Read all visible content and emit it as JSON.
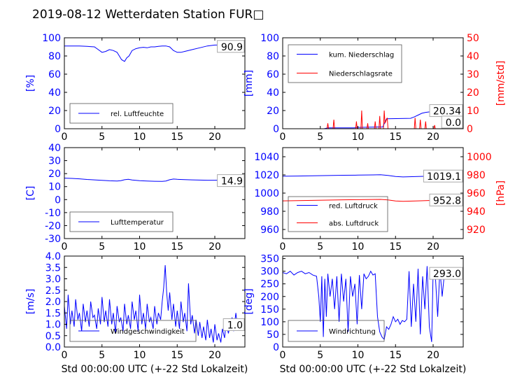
{
  "title": "2019-08-12 Wetterdaten Station FUR□",
  "colors": {
    "left": "#0000ff",
    "right": "#ff0000",
    "axis": "#000000",
    "legend_edge": "#555555",
    "box_edge": "#aaaaaa"
  },
  "chart_data": [
    {
      "id": "humidity",
      "type": "line",
      "ylabel": "[%]",
      "xlabel": "",
      "xlim": [
        0,
        24
      ],
      "xticks": [
        0,
        5,
        10,
        15,
        20
      ],
      "ylim": [
        0,
        100
      ],
      "yticks": [
        0,
        20,
        40,
        60,
        80,
        100
      ],
      "legend_position": "lower-left",
      "series": [
        {
          "name": "rel. Luftfeuchte",
          "axis": "left",
          "color": "#0000ff",
          "x": [
            0,
            1,
            2,
            3,
            4,
            4.5,
            5,
            5.5,
            6,
            6.5,
            7,
            7.3,
            7.6,
            8,
            8.3,
            8.6,
            9,
            9.5,
            10,
            10.5,
            11,
            11.5,
            12,
            12.5,
            13,
            13.5,
            14,
            14.5,
            15,
            15.5,
            16,
            17,
            18,
            19,
            20,
            21,
            22,
            23,
            24
          ],
          "y": [
            91,
            91,
            91,
            90.5,
            90,
            87,
            84,
            85,
            87,
            86,
            84,
            80,
            76,
            74,
            78,
            80,
            86,
            88,
            89,
            89.5,
            89,
            90,
            90,
            90.5,
            91,
            91,
            90,
            86,
            84,
            84,
            85,
            87,
            89,
            91,
            92,
            92,
            91.5,
            91,
            91
          ]
        }
      ],
      "value_labels": [
        {
          "text": "90.9",
          "axis": "left",
          "value": 90.9
        }
      ]
    },
    {
      "id": "precip",
      "type": "line",
      "ylabel": "[mm]",
      "ylabel_right": "[mm/std]",
      "xlabel": "",
      "xlim": [
        0,
        24
      ],
      "xticks": [
        0,
        5,
        10,
        15,
        20
      ],
      "ylim": [
        0,
        100
      ],
      "yticks": [
        0,
        20,
        40,
        60,
        80,
        100
      ],
      "ylim_right": [
        0,
        50
      ],
      "yticks_right": [
        0,
        10,
        20,
        30,
        40,
        50
      ],
      "legend_position": "upper-left",
      "series": [
        {
          "name": "kum. Niederschlag",
          "axis": "left",
          "color": "#0000ff",
          "x": [
            0,
            5.5,
            6,
            9.5,
            10,
            13.3,
            13.8,
            17,
            17.5,
            18,
            18.5,
            19,
            20,
            21,
            22,
            23,
            24
          ],
          "y": [
            0,
            0,
            1,
            1,
            1.5,
            2,
            11,
            11.5,
            13,
            15,
            17,
            18,
            19,
            19.5,
            20,
            20.2,
            20.34
          ]
        },
        {
          "name": "Niederschlagsrate",
          "axis": "right",
          "color": "#ff0000",
          "x": [
            0,
            5.9,
            6.0,
            6.1,
            6.7,
            6.8,
            6.9,
            9.7,
            9.8,
            9.9,
            10.4,
            10.5,
            10.6,
            11.2,
            11.3,
            11.4,
            12.2,
            12.3,
            12.4,
            12.8,
            12.9,
            13.0,
            13.4,
            13.5,
            13.6,
            13.9,
            14.0,
            17.5,
            17.6,
            17.7,
            18.2,
            18.3,
            18.4,
            18.9,
            19.0,
            19.1,
            20.1,
            20.2,
            20.3,
            24
          ],
          "y": [
            0,
            0,
            3,
            0,
            0,
            5,
            0,
            0,
            4,
            0,
            0,
            10,
            0,
            0,
            3,
            0,
            0,
            4,
            0,
            0,
            7,
            0,
            0,
            10,
            3,
            6,
            0,
            0,
            6,
            0,
            0,
            5,
            0,
            0,
            4,
            0,
            0,
            2,
            0,
            0
          ]
        }
      ],
      "value_labels": [
        {
          "text": "20.34",
          "axis": "left",
          "value": 20.34
        },
        {
          "text": "0.0",
          "axis": "right",
          "value": 0
        }
      ]
    },
    {
      "id": "temperature",
      "type": "line",
      "ylabel": "[C]",
      "xlabel": "",
      "xlim": [
        0,
        24
      ],
      "xticks": [
        0,
        5,
        10,
        15,
        20
      ],
      "ylim": [
        -30,
        40
      ],
      "yticks": [
        -30,
        -20,
        -10,
        0,
        10,
        20,
        30,
        40
      ],
      "legend_position": "lower-left",
      "series": [
        {
          "name": "Lufttemperatur",
          "axis": "left",
          "color": "#0000ff",
          "x": [
            0,
            1,
            2,
            3,
            4,
            5,
            6,
            7,
            7.5,
            8,
            8.5,
            9,
            10,
            11,
            12,
            13,
            13.5,
            14,
            14.5,
            15,
            16,
            17,
            18,
            19,
            20,
            21,
            22,
            23,
            24
          ],
          "y": [
            16.5,
            16.3,
            16,
            15.5,
            15.2,
            14.8,
            14.5,
            14.3,
            14.6,
            15.3,
            15.6,
            15.1,
            14.6,
            14.3,
            14.1,
            14,
            14.3,
            15.3,
            15.8,
            15.6,
            15.4,
            15.2,
            15,
            14.9,
            14.9,
            15,
            14.9,
            14.9,
            14.9
          ]
        }
      ],
      "value_labels": [
        {
          "text": "14.9",
          "axis": "left",
          "value": 14.9
        }
      ]
    },
    {
      "id": "pressure",
      "type": "line",
      "ylabel": "",
      "ylabel_right": "[hPa]",
      "xlabel": "",
      "xlim": [
        0,
        24
      ],
      "xticks": [
        0,
        5,
        10,
        15,
        20
      ],
      "ylim": [
        950,
        1050
      ],
      "yticks": [
        960,
        980,
        1000,
        1020,
        1040
      ],
      "ylim_right": [
        910,
        1010
      ],
      "yticks_right": [
        920,
        940,
        960,
        980,
        1000
      ],
      "legend_position": "lower-left",
      "series": [
        {
          "name": "red. Luftdruck",
          "axis": "left",
          "color": "#0000ff",
          "x": [
            0,
            2,
            4,
            6,
            8,
            10,
            12,
            13,
            14,
            15,
            16,
            18,
            20,
            22,
            24
          ],
          "y": [
            1018.5,
            1018.8,
            1019,
            1019.3,
            1019.6,
            1019.8,
            1020,
            1020.2,
            1019.5,
            1018.3,
            1017.8,
            1018.2,
            1018.8,
            1019.1,
            1019.1
          ]
        },
        {
          "name": "abs. Luftdruck",
          "axis": "right",
          "color": "#ff0000",
          "x": [
            0,
            2,
            4,
            6,
            8,
            10,
            12,
            13,
            14,
            15,
            16,
            18,
            20,
            22,
            24
          ],
          "y": [
            951.5,
            951.8,
            952,
            952.3,
            952.6,
            952.8,
            953,
            953.1,
            952.5,
            951.3,
            951,
            951.5,
            952,
            952.6,
            952.8
          ]
        }
      ],
      "value_labels": [
        {
          "text": "1019.1",
          "axis": "left",
          "value": 1019.1
        },
        {
          "text": "952.8",
          "axis": "right",
          "value": 952.8
        }
      ]
    },
    {
      "id": "windspeed",
      "type": "line",
      "ylabel": "[m/s]",
      "xlabel": "Std 00:00:00 UTC (+-22 Std Lokalzeit)",
      "xlim": [
        0,
        24
      ],
      "xticks": [
        0,
        5,
        10,
        15,
        20
      ],
      "ylim": [
        0,
        4
      ],
      "yticks": [
        0,
        0.5,
        1,
        1.5,
        2,
        2.5,
        3,
        3.5,
        4
      ],
      "yticklabels": [
        "0.0",
        "0.5",
        "1.0",
        "1.5",
        "2.0",
        "2.5",
        "3.0",
        "3.5",
        "4.0"
      ],
      "legend_position": "lower-left",
      "series": [
        {
          "name": "Windgeschwindigkeit",
          "axis": "left",
          "color": "#0000ff",
          "x": [
            0,
            0.3,
            0.5,
            0.8,
            1,
            1.3,
            1.5,
            1.8,
            2,
            2.3,
            2.5,
            2.8,
            3,
            3.3,
            3.5,
            3.8,
            4,
            4.3,
            4.5,
            4.8,
            5,
            5.3,
            5.5,
            5.8,
            6,
            6.3,
            6.5,
            6.8,
            7,
            7.3,
            7.5,
            7.8,
            8,
            8.3,
            8.5,
            8.8,
            9,
            9.3,
            9.5,
            9.8,
            10,
            10.3,
            10.5,
            10.8,
            11,
            11.3,
            11.5,
            11.8,
            12,
            12.3,
            12.5,
            12.8,
            13,
            13.2,
            13.4,
            13.6,
            13.8,
            14,
            14.3,
            14.5,
            14.8,
            15,
            15.3,
            15.5,
            15.8,
            16,
            16.3,
            16.5,
            16.8,
            17,
            17.3,
            17.5,
            17.8,
            18,
            18.3,
            18.5,
            18.8,
            19,
            19.3,
            19.5,
            19.8,
            20,
            20.3,
            20.5,
            20.8,
            21,
            21.3,
            21.5,
            21.8,
            22,
            22.3,
            22.5,
            22.8,
            23,
            23.3,
            23.5,
            23.8,
            24
          ],
          "y": [
            1.8,
            0.8,
            2.3,
            1.0,
            1.6,
            0.9,
            2.1,
            1.2,
            1.5,
            0.7,
            1.9,
            1.1,
            1.6,
            0.9,
            2.0,
            1.3,
            1.4,
            0.8,
            1.7,
            1.0,
            2.2,
            1.1,
            1.6,
            0.9,
            2.1,
            1.0,
            1.5,
            0.6,
            1.8,
            1.1,
            1.3,
            0.7,
            1.9,
            1.0,
            1.4,
            0.8,
            2.0,
            1.2,
            1.6,
            0.7,
            2.3,
            1.0,
            1.5,
            0.8,
            1.9,
            1.1,
            1.3,
            0.8,
            1.8,
            1.0,
            1.5,
            1.2,
            2.0,
            2.6,
            3.6,
            2.4,
            1.6,
            2.4,
            1.2,
            1.9,
            0.9,
            1.6,
            0.8,
            2.0,
            1.1,
            1.5,
            0.7,
            2.8,
            1.0,
            1.4,
            0.6,
            1.2,
            0.5,
            1.1,
            0.4,
            0.9,
            0.3,
            1.2,
            0.4,
            0.8,
            0.2,
            1.0,
            0.3,
            0.6,
            0.2,
            0.8,
            0.4,
            1.1,
            0.6,
            0.9,
            1.3,
            0.7,
            1.5,
            0.9,
            1.2,
            1.0,
            0.9,
            1.0
          ]
        }
      ],
      "value_labels": [
        {
          "text": "1.0",
          "axis": "left",
          "value": 1.0
        }
      ]
    },
    {
      "id": "winddir",
      "type": "line",
      "ylabel": "[deg]",
      "xlabel": "Std 00:00:00 UTC (+-22 Std Lokalzeit)",
      "xlim": [
        0,
        24
      ],
      "xticks": [
        0,
        5,
        10,
        15,
        20
      ],
      "ylim": [
        0,
        360
      ],
      "yticks": [
        0,
        50,
        100,
        150,
        200,
        250,
        300,
        350
      ],
      "legend_position": "lower-left",
      "series": [
        {
          "name": "Windrichtung",
          "axis": "left",
          "color": "#0000ff",
          "x": [
            0,
            0.5,
            1,
            1.5,
            2,
            2.5,
            3,
            3.5,
            4,
            4.5,
            4.8,
            5,
            5.2,
            5.4,
            5.6,
            5.8,
            6,
            6.3,
            6.6,
            6.9,
            7.2,
            7.5,
            7.8,
            8.1,
            8.4,
            8.7,
            9,
            9.3,
            9.6,
            9.9,
            10.2,
            10.5,
            10.8,
            11.1,
            11.4,
            11.7,
            12,
            12.3,
            12.6,
            12.9,
            13.2,
            13.5,
            13.8,
            14.1,
            14.4,
            14.7,
            15,
            15.3,
            15.6,
            15.9,
            16.2,
            16.5,
            16.8,
            17.1,
            17.4,
            17.7,
            18,
            18.3,
            18.6,
            18.9,
            19.2,
            19.5,
            19.8,
            20,
            20.3,
            20.6,
            20.9,
            21.2,
            21.5,
            21.8,
            22.1,
            22.4,
            22.7,
            23,
            23.3,
            23.6,
            24
          ],
          "y": [
            295,
            290,
            300,
            285,
            295,
            300,
            290,
            295,
            285,
            280,
            200,
            100,
            280,
            40,
            270,
            120,
            290,
            200,
            270,
            150,
            280,
            100,
            290,
            180,
            270,
            60,
            280,
            200,
            250,
            90,
            285,
            150,
            290,
            270,
            280,
            300,
            285,
            290,
            120,
            60,
            40,
            30,
            80,
            70,
            90,
            120,
            100,
            110,
            90,
            105,
            100,
            110,
            300,
            80,
            250,
            100,
            310,
            50,
            280,
            150,
            320,
            80,
            20,
            300,
            280,
            120,
            310,
            200,
            290,
            300,
            295,
            290,
            300,
            295,
            290,
            295,
            293
          ]
        }
      ],
      "value_labels": [
        {
          "text": "293.0",
          "axis": "left",
          "value": 293.0
        }
      ]
    }
  ]
}
